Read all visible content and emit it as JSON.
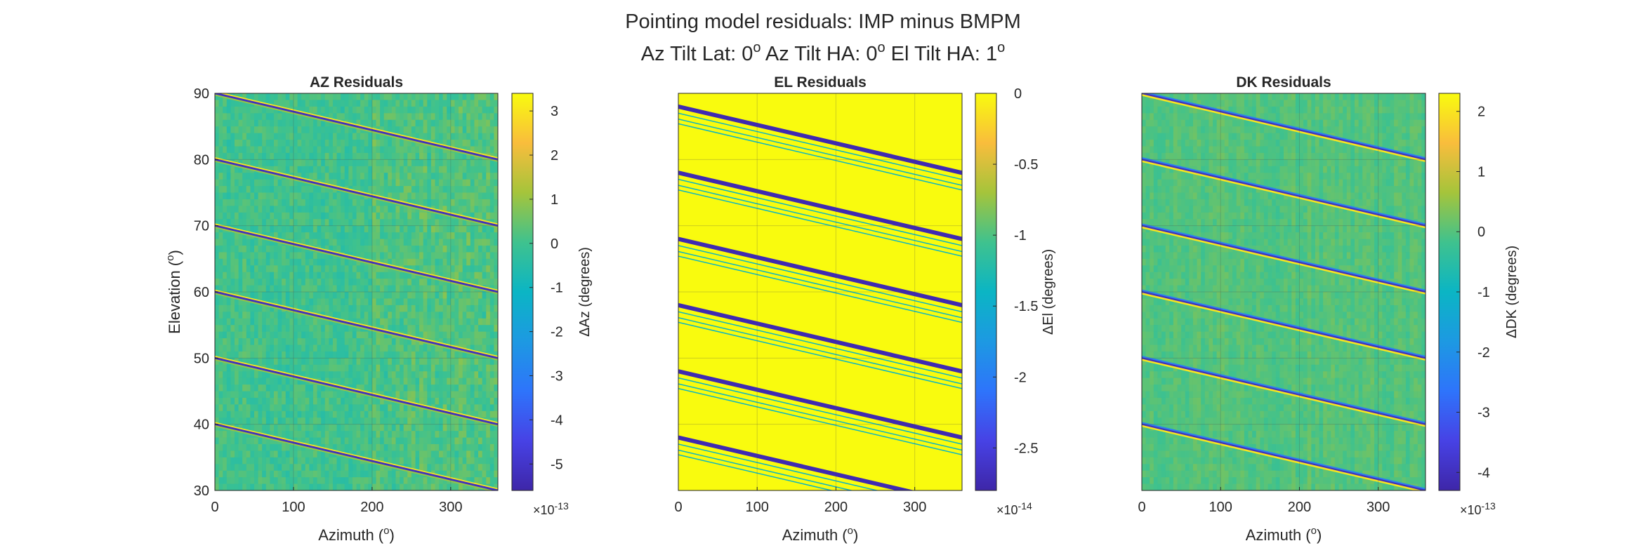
{
  "figure": {
    "title_line1": "Pointing model residuals: IMP minus BMPM",
    "title_line2_parts": [
      "Az Tilt Lat: 0",
      "o",
      " Az Tilt HA: 0",
      "o",
      " El Tilt HA: 1",
      "o"
    ]
  },
  "chart_data": [
    {
      "type": "heatmap",
      "title": "AZ Residuals",
      "xlabel": "Azimuth (",
      "xlabel_sup": "o",
      "xlabel_end": ")",
      "ylabel": "Elevation (",
      "ylabel_sup": "o",
      "ylabel_end": ")",
      "xlim": [
        0,
        360
      ],
      "ylim": [
        30,
        90
      ],
      "xticks": [
        0,
        100,
        200,
        300
      ],
      "yticks": [
        30,
        40,
        50,
        60,
        70,
        80,
        90
      ],
      "grid": true,
      "colorbar": {
        "label": "ΔAz (degrees)",
        "clim": [
          -5.6,
          3.4
        ],
        "ticks": [
          3,
          2,
          1,
          0,
          -1,
          -2,
          -3,
          -4,
          -5
        ],
        "tick_labels": [
          "3",
          "2",
          "1",
          "0",
          "-1",
          "-2",
          "-3",
          "-4",
          "-5"
        ],
        "multiplier": "×10",
        "exponent": "-13"
      },
      "background_value": 0,
      "stripes": {
        "start_elevations": [
          90,
          80,
          70,
          60,
          50,
          40
        ],
        "slope_deg_per_deg": -0.0278,
        "pattern": "pos-neg"
      }
    },
    {
      "type": "heatmap",
      "title": "EL Residuals",
      "xlabel": "Azimuth (",
      "xlabel_sup": "o",
      "xlabel_end": ")",
      "xlim": [
        0,
        360
      ],
      "ylim": [
        30,
        90
      ],
      "xticks": [
        0,
        100,
        200,
        300
      ],
      "grid": true,
      "colorbar": {
        "label": "ΔEl (degrees)",
        "clim": [
          -2.8,
          0
        ],
        "ticks": [
          0,
          -0.5,
          -1,
          -1.5,
          -2,
          -2.5
        ],
        "tick_labels": [
          "0",
          "-0.5",
          "-1",
          "-1.5",
          "-2",
          "-2.5"
        ],
        "multiplier": "×10",
        "exponent": "-14"
      },
      "background_value": 0,
      "stripes": {
        "start_elevations": [
          88,
          78,
          68,
          58,
          48,
          38
        ],
        "slope_deg_per_deg": -0.0278,
        "pattern": "dark-band-with-thin-lines"
      }
    },
    {
      "type": "heatmap",
      "title": "DK Residuals",
      "xlabel": "Azimuth (",
      "xlabel_sup": "o",
      "xlabel_end": ")",
      "xlim": [
        0,
        360
      ],
      "ylim": [
        30,
        90
      ],
      "xticks": [
        0,
        100,
        200,
        300
      ],
      "grid": true,
      "colorbar": {
        "label": "ΔDK (degrees)",
        "clim": [
          -4.3,
          2.3
        ],
        "ticks": [
          2,
          1,
          0,
          -1,
          -2,
          -3,
          -4
        ],
        "tick_labels": [
          "2",
          "1",
          "0",
          "-1",
          "-2",
          "-3",
          "-4"
        ],
        "multiplier": "×10",
        "exponent": "-13"
      },
      "background_value": 0,
      "stripes": {
        "start_elevations": [
          90,
          80,
          70,
          60,
          50,
          40
        ],
        "slope_deg_per_deg": -0.0278,
        "pattern": "neg-pos"
      }
    }
  ]
}
